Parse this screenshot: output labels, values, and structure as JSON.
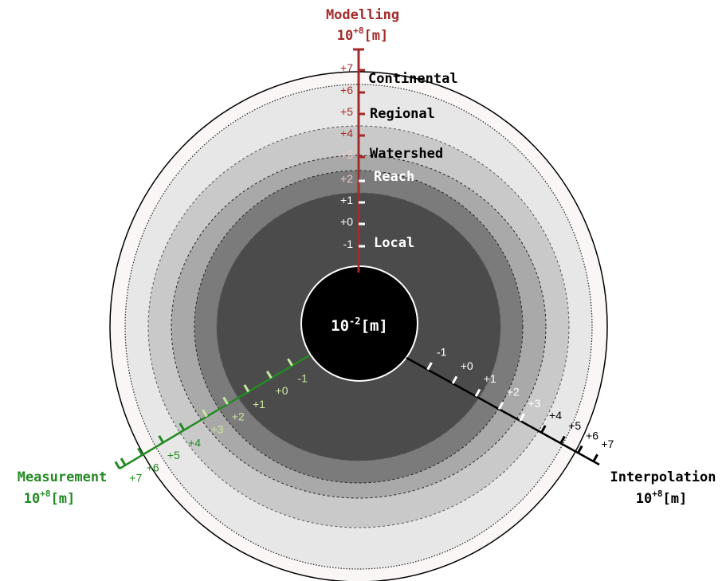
{
  "colors": {
    "modelling": "#a52a2a",
    "measurement": "#238a23",
    "measurement_light": "#c9e6a0",
    "interpolation": "#000000",
    "ring_outer": "#faf6f6",
    "ring_continental": "#e7e7e7",
    "ring_regional": "#c9c9c9",
    "ring_watershed": "#a9a9a9",
    "ring_reach": "#7b7b7b",
    "ring_local": "#4b4b4b",
    "core": "#000000"
  },
  "center": {
    "label_base": "10",
    "label_exp": "-2",
    "label_unit": "[m]"
  },
  "axes": {
    "modelling": {
      "title": "Modelling",
      "unit_base": "10",
      "unit_exp": "+8",
      "unit": "[m]",
      "ticks": [
        "-1",
        "+0",
        "+1",
        "+2",
        "+3",
        "+4",
        "+5",
        "+6",
        "+7"
      ]
    },
    "measurement": {
      "title": "Measurement",
      "unit_base": "10",
      "unit_exp": "+8",
      "unit": "[m]",
      "ticks": [
        "-1",
        "+0",
        "+1",
        "+2",
        "+3",
        "+4",
        "+5",
        "+6",
        "+7"
      ]
    },
    "interpolation": {
      "title": "Interpolation",
      "unit_base": "10",
      "unit_exp": "+8",
      "unit": "[m]",
      "ticks": [
        "-1",
        "+0",
        "+1",
        "+2",
        "+3",
        "+4",
        "+5",
        "+6",
        "+7"
      ]
    }
  },
  "scales": {
    "local": "Local",
    "reach": "Reach",
    "watershed": "Watershed",
    "regional": "Regional",
    "continental": "Continental"
  }
}
